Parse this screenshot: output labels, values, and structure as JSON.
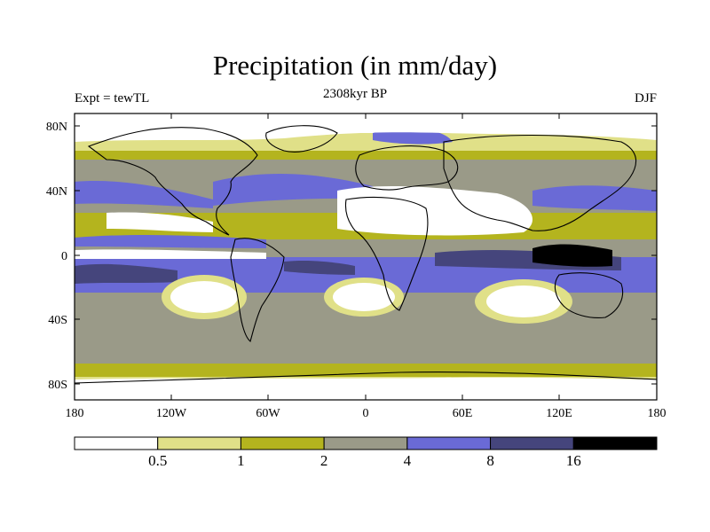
{
  "title": "Precipitation (in mm/day)",
  "subtitle_left": "Expt = tewTL",
  "subtitle_center": "2308kyr BP",
  "subtitle_right": "DJF",
  "lat_ticks": [
    "80N",
    "40N",
    "0",
    "40S",
    "80S"
  ],
  "lon_ticks": [
    "180",
    "120W",
    "60W",
    "0",
    "60E",
    "120E",
    "180"
  ],
  "colorbar": {
    "labels": [
      "0.5",
      "1",
      "2",
      "4",
      "8",
      "16"
    ],
    "colors": [
      "#ffffff",
      "#e0e088",
      "#b4b41e",
      "#9a9a88",
      "#6a6ad6",
      "#45457c",
      "#000000"
    ]
  },
  "colors": {
    "land_outline": "#000000",
    "frame": "#000000"
  }
}
